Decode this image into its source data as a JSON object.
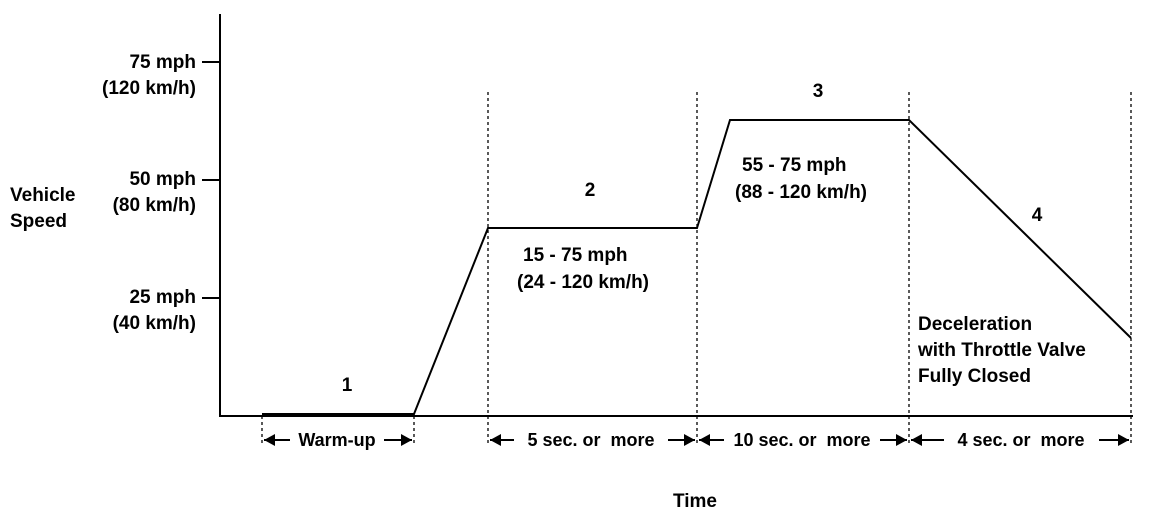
{
  "y_axis": {
    "title_line1": "Vehicle",
    "title_line2": "Speed",
    "ticks": [
      {
        "mph": "75 mph",
        "kmh": "(120 km/h)"
      },
      {
        "mph": "50 mph",
        "kmh": "(80 km/h)"
      },
      {
        "mph": "25 mph",
        "kmh": "(40 km/h)"
      }
    ]
  },
  "x_axis": {
    "title": "Time"
  },
  "phases": [
    {
      "number": "1",
      "duration": "Warm-up"
    },
    {
      "number": "2",
      "speed_line1": "15 - 75 mph",
      "speed_line2": "(24 - 120 km/h)",
      "duration": "5 sec. or  more"
    },
    {
      "number": "3",
      "speed_line1": "55 - 75 mph",
      "speed_line2": "(88 - 120 km/h)",
      "duration": "10 sec. or  more"
    },
    {
      "number": "4",
      "note_line1": "Deceleration",
      "note_line2": "with Throttle Valve",
      "note_line3": "Fully Closed",
      "duration": "4 sec. or  more"
    }
  ]
}
